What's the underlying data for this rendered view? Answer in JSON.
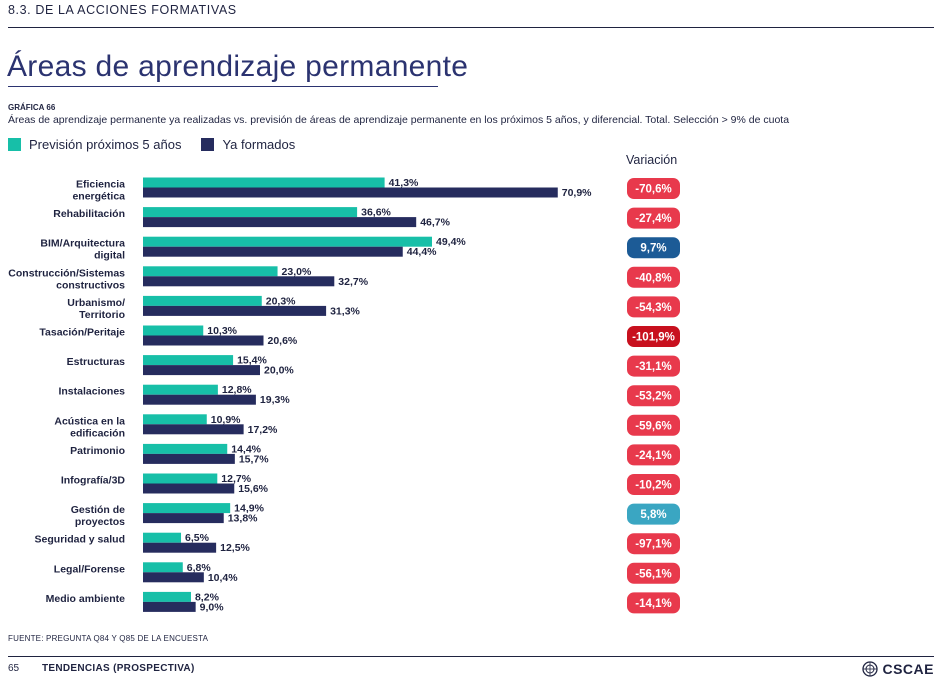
{
  "header": {
    "section": "8.3. DE LA ACCIONES FORMATIVAS",
    "title": "Áreas de aprendizaje permanente"
  },
  "figure": {
    "label": "GRÁFICA 66",
    "caption": "Áreas de aprendizaje permanente ya realizadas vs. previsión de áreas de aprendizaje permanente en los próximos 5 años, y diferencial. Total. Selección > 9% de cuota"
  },
  "legend": {
    "items": [
      {
        "label": "Previsión próximos 5 años",
        "color": "#17bfa8"
      },
      {
        "label": "Ya formados",
        "color": "#262c5e"
      }
    ]
  },
  "variation_header": "Variación",
  "chart_data": {
    "type": "bar",
    "orientation": "horizontal",
    "categories": [
      [
        "Eficiencia",
        "energética"
      ],
      [
        "Rehabilitación"
      ],
      [
        "BIM/Arquitectura",
        "digital"
      ],
      [
        "Construcción/Sistemas",
        "constructivos"
      ],
      [
        "Urbanismo/",
        "Territorio"
      ],
      [
        "Tasación/Peritaje"
      ],
      [
        "Estructuras"
      ],
      [
        "Instalaciones"
      ],
      [
        "Acústica en la",
        "edificación"
      ],
      [
        "Patrimonio"
      ],
      [
        "Infografía/3D"
      ],
      [
        "Gestión de",
        "proyectos"
      ],
      [
        "Seguridad y salud"
      ],
      [
        "Legal/Forense"
      ],
      [
        "Medio ambiente"
      ]
    ],
    "series": [
      {
        "name": "Previsión próximos 5 años",
        "color": "#17bfa8",
        "values": [
          41.3,
          36.6,
          49.4,
          23.0,
          20.3,
          10.3,
          15.4,
          12.8,
          10.9,
          14.4,
          12.7,
          14.9,
          6.5,
          6.8,
          8.2
        ],
        "labels": [
          "41,3%",
          "36,6%",
          "49,4%",
          "23,0%",
          "20,3%",
          "10,3%",
          "15,4%",
          "12,8%",
          "10,9%",
          "14,4%",
          "12,7%",
          "14,9%",
          "6,5%",
          "6,8%",
          "8,2%"
        ]
      },
      {
        "name": "Ya formados",
        "color": "#262c5e",
        "values": [
          70.9,
          46.7,
          44.4,
          32.7,
          31.3,
          20.6,
          20.0,
          19.3,
          17.2,
          15.7,
          15.6,
          13.8,
          12.5,
          10.4,
          9.0
        ],
        "labels": [
          "70,9%",
          "46,7%",
          "44,4%",
          "32,7%",
          "31,3%",
          "20,6%",
          "20,0%",
          "19,3%",
          "17,2%",
          "15,7%",
          "15,6%",
          "13,8%",
          "12,5%",
          "10,4%",
          "9,0%"
        ]
      }
    ],
    "variation": {
      "values": [
        -70.6,
        -27.4,
        9.7,
        -40.8,
        -54.3,
        -101.9,
        -31.1,
        -53.2,
        -59.6,
        -24.1,
        -10.2,
        5.8,
        -97.1,
        -56.1,
        -14.1
      ],
      "labels": [
        "-70,6%",
        "-27,4%",
        "9,7%",
        "-40,8%",
        "-54,3%",
        "-101,9%",
        "-31,1%",
        "-53,2%",
        "-59,6%",
        "-24,1%",
        "-10,2%",
        "5,8%",
        "-97,1%",
        "-56,1%",
        "-14,1%"
      ],
      "colors": [
        "#e8394c",
        "#e8394c",
        "#1c5b96",
        "#e8394c",
        "#e8394c",
        "#c8101e",
        "#e8394c",
        "#e8394c",
        "#e8394c",
        "#e8394c",
        "#e8394c",
        "#3aa6c2",
        "#e8394c",
        "#e8394c",
        "#e8394c"
      ]
    },
    "xlim": [
      0,
      75
    ]
  },
  "footer": {
    "source": "FUENTE: PREGUNTA Q84 Y Q85 DE LA ENCUESTA",
    "page": "65",
    "title": "TENDENCIAS (PROSPECTIVA)",
    "logo": "CSCAE"
  }
}
